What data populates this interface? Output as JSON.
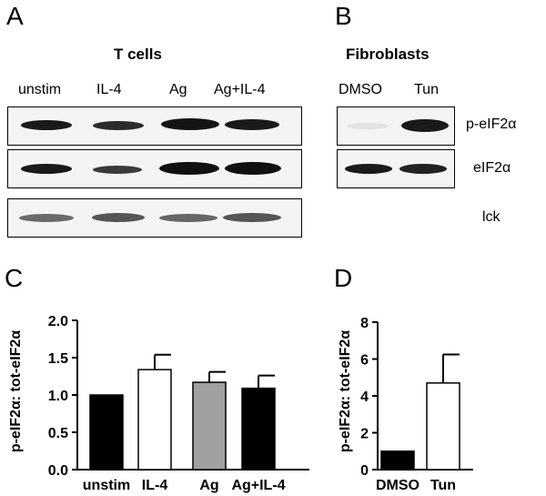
{
  "panels": {
    "a": "A",
    "b": "B",
    "c": "C",
    "d": "D"
  },
  "blot_a": {
    "title": "T cells",
    "lanes": [
      "unstim",
      "IL-4",
      "Ag",
      "Ag+IL-4"
    ]
  },
  "blot_b": {
    "title": "Fibroblasts",
    "lanes": [
      "DMSO",
      "Tun"
    ]
  },
  "band_labels": [
    "p-eIF2α",
    "eIF2α",
    "lck"
  ],
  "chart_data": [
    {
      "type": "bar",
      "panel": "C",
      "categories": [
        "unstim",
        "IL-4",
        "Ag",
        "Ag+IL-4"
      ],
      "values": [
        1.0,
        1.34,
        1.17,
        1.09
      ],
      "errors": [
        0,
        0.2,
        0.14,
        0.17
      ],
      "bar_colors": [
        "#000000",
        "#ffffff",
        "#a0a0a0",
        "#000000"
      ],
      "ylabel": "p-eIF2α: tot-eIF2α",
      "ylim": [
        0,
        2.0
      ],
      "yticks": [
        "0.0",
        "0.5",
        "1.0",
        "1.5",
        "2.0"
      ],
      "ytick_values": [
        0,
        0.5,
        1.0,
        1.5,
        2.0
      ]
    },
    {
      "type": "bar",
      "panel": "D",
      "categories": [
        "DMSO",
        "Tun"
      ],
      "values": [
        1.0,
        4.7
      ],
      "errors": [
        0,
        1.55
      ],
      "bar_colors": [
        "#000000",
        "#ffffff"
      ],
      "ylabel": "p-eIF2α: tot-eIF2α",
      "ylim": [
        0,
        8
      ],
      "yticks": [
        "0",
        "2",
        "4",
        "6",
        "8"
      ],
      "ytick_values": [
        0,
        2,
        4,
        6,
        8
      ]
    }
  ]
}
